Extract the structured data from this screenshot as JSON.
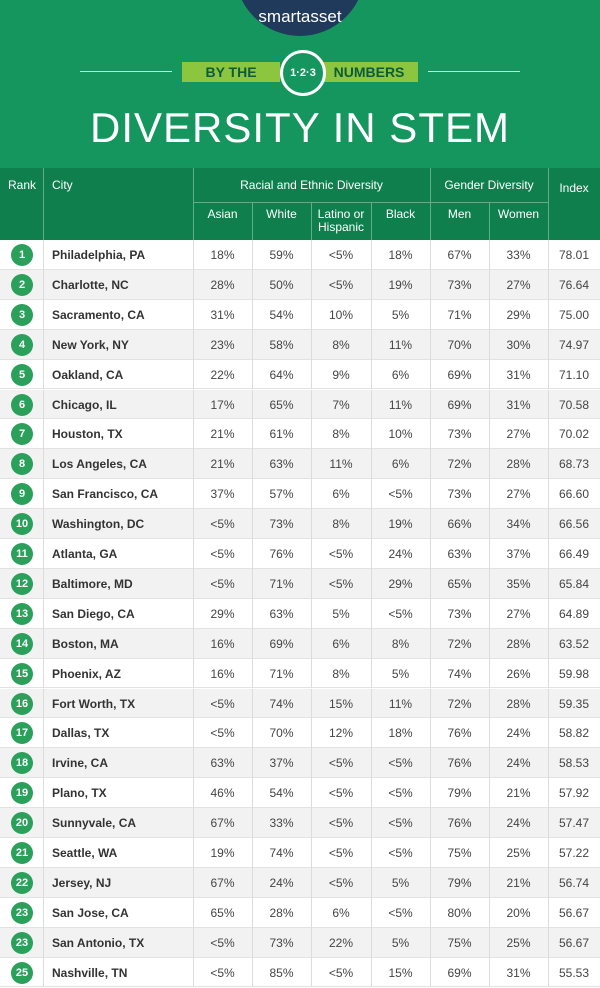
{
  "header": {
    "logo": "smartasset",
    "tag_left": "BY THE",
    "tag_badge": "1·2·3",
    "tag_right": "NUMBERS",
    "title": "DIVERSITY IN STEM"
  },
  "table": {
    "headers": {
      "rank": "Rank",
      "city": "City",
      "group_race": "Racial and Ethnic Diversity",
      "group_gender": "Gender Diversity",
      "index": "Index",
      "sub": [
        "Asian",
        "White",
        "Latino or Hispanic",
        "Black",
        "Men",
        "Women"
      ]
    },
    "rows": [
      [
        "1",
        "Philadelphia, PA",
        "18%",
        "59%",
        "<5%",
        "18%",
        "67%",
        "33%",
        "78.01"
      ],
      [
        "2",
        "Charlotte, NC",
        "28%",
        "50%",
        "<5%",
        "19%",
        "73%",
        "27%",
        "76.64"
      ],
      [
        "3",
        "Sacramento, CA",
        "31%",
        "54%",
        "10%",
        "5%",
        "71%",
        "29%",
        "75.00"
      ],
      [
        "4",
        "New York, NY",
        "23%",
        "58%",
        "8%",
        "11%",
        "70%",
        "30%",
        "74.97"
      ],
      [
        "5",
        "Oakland, CA",
        "22%",
        "64%",
        "9%",
        "6%",
        "69%",
        "31%",
        "71.10"
      ],
      [
        "6",
        "Chicago, IL",
        "17%",
        "65%",
        "7%",
        "11%",
        "69%",
        "31%",
        "70.58"
      ],
      [
        "7",
        "Houston, TX",
        "21%",
        "61%",
        "8%",
        "10%",
        "73%",
        "27%",
        "70.02"
      ],
      [
        "8",
        "Los Angeles, CA",
        "21%",
        "63%",
        "11%",
        "6%",
        "72%",
        "28%",
        "68.73"
      ],
      [
        "9",
        "San Francisco, CA",
        "37%",
        "57%",
        "6%",
        "<5%",
        "73%",
        "27%",
        "66.60"
      ],
      [
        "10",
        "Washington, DC",
        "<5%",
        "73%",
        "8%",
        "19%",
        "66%",
        "34%",
        "66.56"
      ],
      [
        "11",
        "Atlanta, GA",
        "<5%",
        "76%",
        "<5%",
        "24%",
        "63%",
        "37%",
        "66.49"
      ],
      [
        "12",
        "Baltimore, MD",
        "<5%",
        "71%",
        "<5%",
        "29%",
        "65%",
        "35%",
        "65.84"
      ],
      [
        "13",
        "San Diego, CA",
        "29%",
        "63%",
        "5%",
        "<5%",
        "73%",
        "27%",
        "64.89"
      ],
      [
        "14",
        "Boston, MA",
        "16%",
        "69%",
        "6%",
        "8%",
        "72%",
        "28%",
        "63.52"
      ],
      [
        "15",
        "Phoenix, AZ",
        "16%",
        "71%",
        "8%",
        "5%",
        "74%",
        "26%",
        "59.98"
      ],
      [
        "16",
        "Fort Worth, TX",
        "<5%",
        "74%",
        "15%",
        "11%",
        "72%",
        "28%",
        "59.35"
      ],
      [
        "17",
        "Dallas, TX",
        "<5%",
        "70%",
        "12%",
        "18%",
        "76%",
        "24%",
        "58.82"
      ],
      [
        "18",
        "Irvine, CA",
        "63%",
        "37%",
        "<5%",
        "<5%",
        "76%",
        "24%",
        "58.53"
      ],
      [
        "19",
        "Plano, TX",
        "46%",
        "54%",
        "<5%",
        "<5%",
        "79%",
        "21%",
        "57.92"
      ],
      [
        "20",
        "Sunnyvale, CA",
        "67%",
        "33%",
        "<5%",
        "<5%",
        "76%",
        "24%",
        "57.47"
      ],
      [
        "21",
        "Seattle, WA",
        "19%",
        "74%",
        "<5%",
        "<5%",
        "75%",
        "25%",
        "57.22"
      ],
      [
        "22",
        "Jersey, NJ",
        "67%",
        "24%",
        "<5%",
        "5%",
        "79%",
        "21%",
        "56.74"
      ],
      [
        "23",
        "San Jose, CA",
        "65%",
        "28%",
        "6%",
        "<5%",
        "80%",
        "20%",
        "56.67"
      ],
      [
        "23",
        "San Antonio, TX",
        "<5%",
        "73%",
        "22%",
        "5%",
        "75%",
        "25%",
        "56.67"
      ],
      [
        "25",
        "Nashville, TN",
        "<5%",
        "85%",
        "<5%",
        "15%",
        "69%",
        "31%",
        "55.53"
      ]
    ]
  }
}
